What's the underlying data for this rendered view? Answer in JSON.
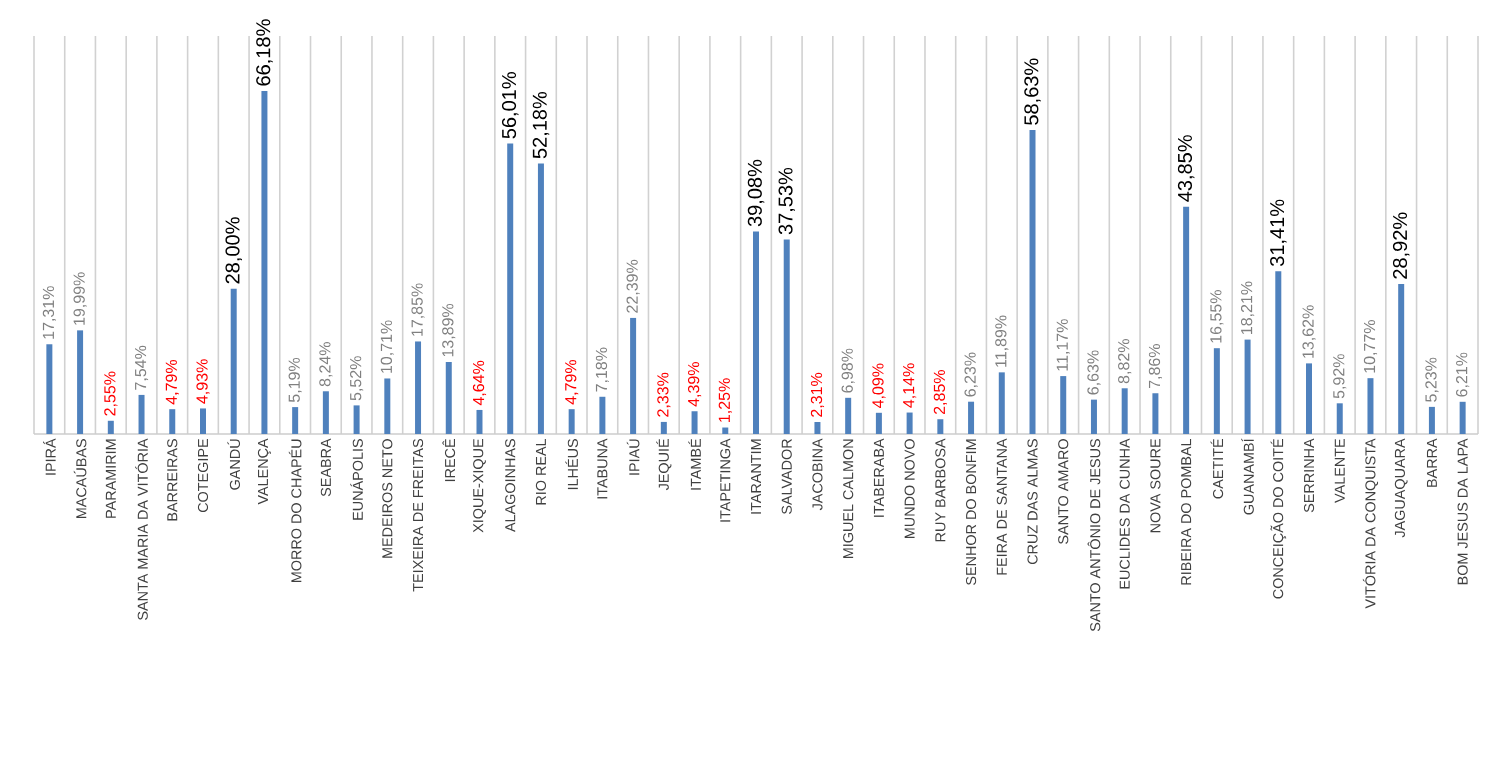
{
  "chart_data": {
    "type": "bar",
    "color": "#4f81bd",
    "grid": "x",
    "categories": [
      "IPIRÁ",
      "MACAÚBAS",
      "PARAMIRIM",
      "SANTA MARIA DA VITÓRIA",
      "BARREIRAS",
      "COTEGIPE",
      "GANDÚ",
      "VALENÇA",
      "MORRO DO CHAPÉU",
      "SEABRA",
      "EUNÁPOLIS",
      "MEDEIROS NETO",
      "TEIXEIRA DE FREITAS",
      "IRECÊ",
      "XIQUE-XIQUE",
      "ALAGOINHAS",
      "RIO REAL",
      "ILHÉUS",
      "ITABUNA",
      "IPIAÚ",
      "JEQUIÉ",
      "ITAMBÉ",
      "ITAPETINGA",
      "ITARANTIM",
      "SALVADOR",
      "JACOBINA",
      "MIGUEL CALMON",
      "ITABERABA",
      "MUNDO NOVO",
      "RUY BARBOSA",
      "SENHOR DO BONFIM",
      "FEIRA DE SANTANA",
      "CRUZ DAS ALMAS",
      "SANTO AMARO",
      "SANTO ANTÔNIO DE JESUS",
      "EUCLIDES DA CUNHA",
      "NOVA SOURE",
      "RIBEIRA DO POMBAL",
      "CAETITÉ",
      "GUANAMBÍ",
      "CONCEIÇÃO DO COITÉ",
      "SERRINHA",
      "VALENTE",
      "VITÓRIA DA CONQUISTA",
      "JAGUAQUARA",
      "BARRA",
      "BOM JESUS DA LAPA"
    ],
    "values": [
      17.31,
      19.99,
      2.55,
      7.54,
      4.79,
      4.93,
      28.0,
      66.18,
      5.19,
      8.24,
      5.52,
      10.71,
      17.85,
      13.89,
      4.64,
      56.01,
      52.18,
      4.79,
      7.18,
      22.39,
      2.33,
      4.39,
      1.25,
      39.08,
      37.53,
      2.31,
      6.98,
      4.09,
      4.14,
      2.85,
      6.23,
      11.89,
      58.63,
      11.17,
      6.63,
      8.82,
      7.86,
      43.85,
      16.55,
      18.21,
      31.41,
      13.62,
      5.92,
      10.77,
      28.92,
      5.23,
      6.21
    ],
    "value_labels": [
      "17,31%",
      "19,99%",
      "2,55%",
      "7,54%",
      "4,79%",
      "4,93%",
      "28,00%",
      "66,18%",
      "5,19%",
      "8,24%",
      "5,52%",
      "10,71%",
      "17,85%",
      "13,89%",
      "4,64%",
      "56,01%",
      "52,18%",
      "4,79%",
      "7,18%",
      "22,39%",
      "2,33%",
      "4,39%",
      "1,25%",
      "39,08%",
      "37,53%",
      "2,31%",
      "6,98%",
      "4,09%",
      "4,14%",
      "2,85%",
      "6,23%",
      "11,89%",
      "58,63%",
      "11,17%",
      "6,63%",
      "8,82%",
      "7,86%",
      "43,85%",
      "16,55%",
      "18,21%",
      "31,41%",
      "13,62%",
      "5,92%",
      "10,77%",
      "28,92%",
      "5,23%",
      "6,21%"
    ]
  }
}
